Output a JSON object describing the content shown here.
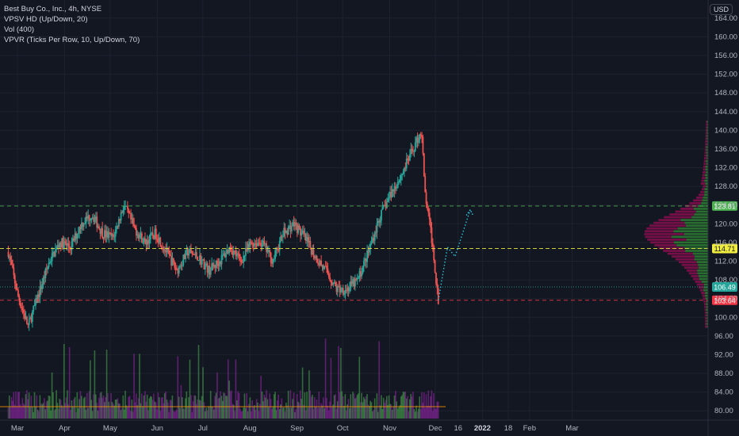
{
  "legend": {
    "symbol": "Best Buy Co., Inc., 4h, NYSE",
    "indicator1": "VPSV HD (Up/Down, 20)",
    "indicator2": "Vol (400)",
    "indicator3": "VPVR (Ticks Per Row, 10, Up/Down, 70)"
  },
  "currency": "USD",
  "colors": {
    "background": "#131722",
    "up": "#26a69a",
    "down": "#ef5350",
    "vol_up": "#4caf50",
    "vol_down": "#9c27b0",
    "vp_up": "#2e7d32",
    "vp_down": "#880e4f",
    "projection": "#26c6da",
    "green_tag": "#4caf50",
    "yellow_tag": "#f0ed3e",
    "teal_tag": "#26a69a",
    "red_tag": "#f23645"
  },
  "chart_data": {
    "type": "candlestick",
    "title": "Best Buy Co., Inc., 4h, NYSE",
    "y_ticks": [
      "164.00",
      "160.00",
      "156.00",
      "152.00",
      "148.00",
      "144.00",
      "140.00",
      "136.00",
      "132.00",
      "128.00",
      "124.00",
      "120.00",
      "116.00",
      "112.00",
      "108.00",
      "104.00",
      "100.00",
      "96.00",
      "92.00",
      "88.00",
      "84.00",
      "80.00"
    ],
    "x_ticks": [
      "Mar",
      "Apr",
      "May",
      "Jun",
      "Jul",
      "Aug",
      "Sep",
      "Oct",
      "Nov",
      "Dec",
      "16",
      "2022",
      "18",
      "Feb",
      "Mar"
    ],
    "x_bold": [
      "2022"
    ],
    "ylim": [
      78,
      166
    ],
    "price_levels": [
      {
        "label": "123.81",
        "value": 123.81,
        "style": "dashed-green"
      },
      {
        "label": "114.71",
        "value": 114.71,
        "style": "dashed-yellow"
      },
      {
        "label": "106.49",
        "value": 106.49,
        "style": "dotted-teal"
      },
      {
        "label": "103.64",
        "value": 103.64,
        "style": "dashed-red"
      }
    ],
    "price_path": [
      {
        "date": "2021-02-23",
        "price": 114
      },
      {
        "date": "2021-03-01",
        "price": 105
      },
      {
        "date": "2021-03-08",
        "price": 98
      },
      {
        "date": "2021-03-15",
        "price": 105
      },
      {
        "date": "2021-03-22",
        "price": 112
      },
      {
        "date": "2021-03-29",
        "price": 116
      },
      {
        "date": "2021-04-05",
        "price": 115
      },
      {
        "date": "2021-04-12",
        "price": 120
      },
      {
        "date": "2021-04-19",
        "price": 122
      },
      {
        "date": "2021-04-26",
        "price": 118
      },
      {
        "date": "2021-05-03",
        "price": 117
      },
      {
        "date": "2021-05-10",
        "price": 124
      },
      {
        "date": "2021-05-17",
        "price": 119
      },
      {
        "date": "2021-05-24",
        "price": 116
      },
      {
        "date": "2021-05-31",
        "price": 118
      },
      {
        "date": "2021-06-07",
        "price": 114
      },
      {
        "date": "2021-06-14",
        "price": 110
      },
      {
        "date": "2021-06-21",
        "price": 114
      },
      {
        "date": "2021-06-28",
        "price": 113
      },
      {
        "date": "2021-07-05",
        "price": 110
      },
      {
        "date": "2021-07-12",
        "price": 112
      },
      {
        "date": "2021-07-19",
        "price": 115
      },
      {
        "date": "2021-07-26",
        "price": 112
      },
      {
        "date": "2021-08-02",
        "price": 116
      },
      {
        "date": "2021-08-09",
        "price": 116
      },
      {
        "date": "2021-08-16",
        "price": 112
      },
      {
        "date": "2021-08-23",
        "price": 118
      },
      {
        "date": "2021-08-30",
        "price": 120
      },
      {
        "date": "2021-09-06",
        "price": 117
      },
      {
        "date": "2021-09-13",
        "price": 113
      },
      {
        "date": "2021-09-20",
        "price": 110
      },
      {
        "date": "2021-09-27",
        "price": 106
      },
      {
        "date": "2021-10-04",
        "price": 106
      },
      {
        "date": "2021-10-11",
        "price": 108
      },
      {
        "date": "2021-10-18",
        "price": 114
      },
      {
        "date": "2021-10-25",
        "price": 121
      },
      {
        "date": "2021-11-01",
        "price": 126
      },
      {
        "date": "2021-11-08",
        "price": 130
      },
      {
        "date": "2021-11-15",
        "price": 135
      },
      {
        "date": "2021-11-22",
        "price": 140
      },
      {
        "date": "2021-11-24",
        "price": 127
      },
      {
        "date": "2021-11-29",
        "price": 116
      },
      {
        "date": "2021-12-03",
        "price": 103.64
      }
    ],
    "projection_path": [
      {
        "date": "2021-12-03",
        "price": 103.64
      },
      {
        "date": "2021-12-09",
        "price": 115
      },
      {
        "date": "2021-12-14",
        "price": 113
      },
      {
        "date": "2021-12-24",
        "price": 123
      }
    ],
    "volume_profile_peak": 118
  }
}
